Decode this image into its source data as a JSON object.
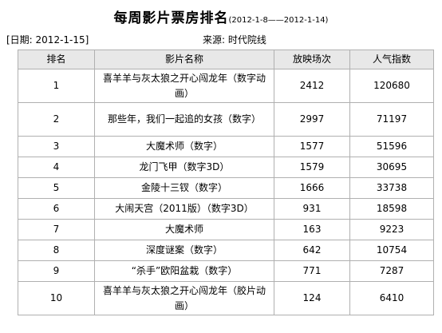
{
  "header": {
    "title": "每周影片票房排名",
    "range": "(2012-1-8——2012-1-14)",
    "date": "[日期: 2012-1-15]",
    "source": "来源: 时代院线"
  },
  "table": {
    "columns": [
      "排名",
      "影片名称",
      "放映场次",
      "人气指数"
    ],
    "rows": [
      {
        "rank": "1",
        "film": "喜羊羊与灰太狼之开心闯龙年（数字动画）",
        "shows": "2412",
        "pop": "120680"
      },
      {
        "rank": "2",
        "film": "那些年，我们一起追的女孩（数字）",
        "shows": "2997",
        "pop": "71197"
      },
      {
        "rank": "3",
        "film": "大魔术师（数字）",
        "shows": "1577",
        "pop": "51596"
      },
      {
        "rank": "4",
        "film": "龙门飞甲（数字3D）",
        "shows": "1579",
        "pop": "30695"
      },
      {
        "rank": "5",
        "film": "金陵十三钗（数字）",
        "shows": "1666",
        "pop": "33738"
      },
      {
        "rank": "6",
        "film": "大闹天宫（2011版）（数字3D）",
        "shows": "931",
        "pop": "18598"
      },
      {
        "rank": "7",
        "film": "大魔术师",
        "shows": "163",
        "pop": "9223"
      },
      {
        "rank": "8",
        "film": "深度谜案（数字）",
        "shows": "642",
        "pop": "10754"
      },
      {
        "rank": "9",
        "film": "“杀手”欧阳盆栽（数字）",
        "shows": "771",
        "pop": "7287"
      },
      {
        "rank": "10",
        "film": "喜羊羊与灰太狼之开心闯龙年（胶片动画）",
        "shows": "124",
        "pop": "6410"
      }
    ]
  }
}
